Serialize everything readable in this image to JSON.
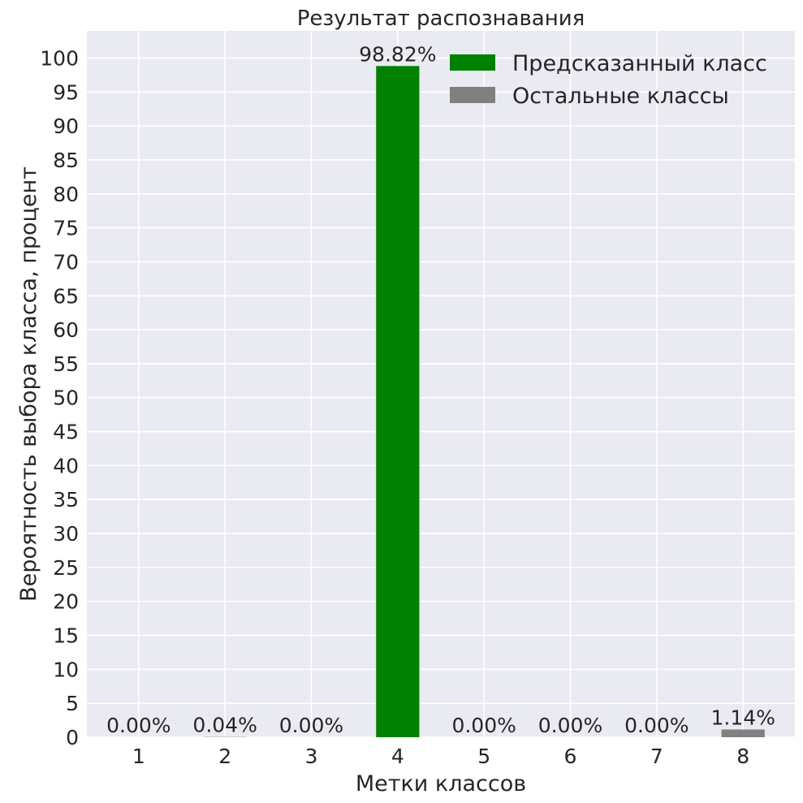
{
  "chart_data": {
    "type": "bar",
    "title": "Результат распознавания",
    "xlabel": "Метки классов",
    "ylabel": "Вероятность выбора класса, процент",
    "categories": [
      "1",
      "2",
      "3",
      "4",
      "5",
      "6",
      "7",
      "8"
    ],
    "values": [
      0.0,
      0.04,
      0.0,
      98.82,
      0.0,
      0.0,
      0.0,
      1.14
    ],
    "value_labels": [
      "0.00%",
      "0.04%",
      "0.00%",
      "98.82%",
      "0.00%",
      "0.00%",
      "0.00%",
      "1.14%"
    ],
    "predicted_index": 3,
    "ylim": [
      0,
      104
    ],
    "yticks": [
      0,
      5,
      10,
      15,
      20,
      25,
      30,
      35,
      40,
      45,
      50,
      55,
      60,
      65,
      70,
      75,
      80,
      85,
      90,
      95,
      100
    ],
    "grid": true,
    "legend_position": "top-right",
    "legend": [
      {
        "label": "Предсказанный класс",
        "color": "#008000"
      },
      {
        "label": "Остальные классы",
        "color": "#808080"
      }
    ],
    "colors": {
      "predicted": "#008000",
      "other": "#808080",
      "plot_background": "#eaeaf2",
      "grid": "#ffffff",
      "text": "#262626"
    }
  }
}
